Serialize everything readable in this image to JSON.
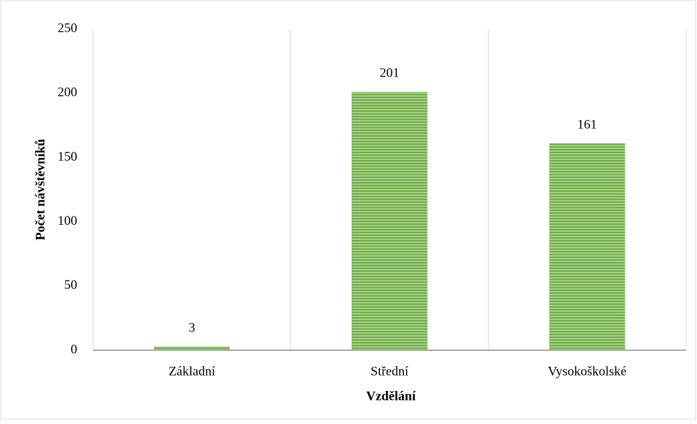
{
  "chart_data": {
    "type": "bar",
    "categories": [
      "Základní",
      "Střední",
      "Vysokoškolské"
    ],
    "values": [
      3,
      201,
      161
    ],
    "color": "#70ad47",
    "ylim": [
      0,
      250
    ],
    "yticks": [
      0,
      50,
      100,
      150,
      200,
      250
    ],
    "ylabel": "Počet návštěvníků",
    "xlabel": "Vzdělání",
    "grid": false
  }
}
